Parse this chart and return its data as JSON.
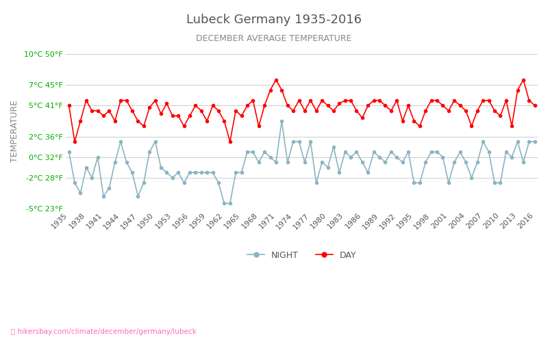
{
  "title": "Lubeck Germany 1935-2016",
  "subtitle": "DECEMBER AVERAGE TEMPERATURE",
  "ylabel": "TEMPERATURE",
  "xlabel": "",
  "url_text": "hikersbay.com/climate/december/germany/lubeck",
  "ylim": [
    -5,
    10
  ],
  "yticks_celsius": [
    -5,
    -2,
    0,
    2,
    5,
    7,
    10
  ],
  "yticks_fahrenheit": [
    23,
    28,
    32,
    36,
    41,
    45,
    50
  ],
  "years": [
    1935,
    1936,
    1937,
    1938,
    1939,
    1940,
    1941,
    1942,
    1943,
    1944,
    1945,
    1946,
    1947,
    1948,
    1949,
    1950,
    1951,
    1952,
    1953,
    1954,
    1955,
    1956,
    1957,
    1958,
    1959,
    1960,
    1961,
    1962,
    1963,
    1964,
    1965,
    1966,
    1967,
    1968,
    1969,
    1970,
    1971,
    1972,
    1973,
    1974,
    1975,
    1976,
    1977,
    1978,
    1979,
    1980,
    1981,
    1982,
    1983,
    1984,
    1985,
    1986,
    1987,
    1988,
    1989,
    1990,
    1991,
    1992,
    1993,
    1994,
    1995,
    1996,
    1997,
    1998,
    1999,
    2000,
    2001,
    2002,
    2003,
    2004,
    2005,
    2006,
    2007,
    2008,
    2009,
    2010,
    2011,
    2012,
    2013,
    2014,
    2015,
    2016
  ],
  "day_temps": [
    5.0,
    1.5,
    3.5,
    5.5,
    4.5,
    4.5,
    4.0,
    4.5,
    3.5,
    5.5,
    5.5,
    4.5,
    3.5,
    3.0,
    4.8,
    5.5,
    4.2,
    5.2,
    4.0,
    4.0,
    3.0,
    4.0,
    5.0,
    4.5,
    3.5,
    5.0,
    4.5,
    3.5,
    1.5,
    4.5,
    4.0,
    5.0,
    5.5,
    3.0,
    5.0,
    6.5,
    7.5,
    6.5,
    5.0,
    4.5,
    5.5,
    4.5,
    5.5,
    4.5,
    5.5,
    5.0,
    4.5,
    5.2,
    5.5,
    5.5,
    4.5,
    3.8,
    5.0,
    5.5,
    5.5,
    5.0,
    4.5,
    5.5,
    3.5,
    5.0,
    3.5,
    3.0,
    4.5,
    5.5,
    5.5,
    5.0,
    4.5,
    5.5,
    5.0,
    4.5,
    3.0,
    4.5,
    5.5,
    5.5,
    4.5,
    4.0,
    5.5,
    3.0,
    6.5,
    7.5,
    5.5,
    5.0
  ],
  "night_temps": [
    0.5,
    -2.5,
    -3.5,
    -1.0,
    -2.0,
    0.0,
    -3.8,
    -3.0,
    -0.5,
    1.5,
    -0.5,
    -1.5,
    -3.8,
    -2.5,
    0.5,
    1.5,
    -1.0,
    -1.5,
    -2.0,
    -1.5,
    -2.5,
    -1.5,
    -1.5,
    -1.5,
    -1.5,
    -1.5,
    -2.5,
    -4.5,
    -4.5,
    -1.5,
    -1.5,
    0.5,
    0.5,
    -0.5,
    0.5,
    0.0,
    -0.5,
    3.5,
    -0.5,
    1.5,
    1.5,
    -0.5,
    1.5,
    -2.5,
    -0.5,
    -1.0,
    1.0,
    -1.5,
    0.5,
    0.0,
    0.5,
    -0.5,
    -1.5,
    0.5,
    0.0,
    -0.5,
    0.5,
    0.0,
    -0.5,
    0.5,
    -2.5,
    -2.5,
    -0.5,
    0.5,
    0.5,
    0.0,
    -2.5,
    -0.5,
    0.5,
    -0.5,
    -2.0,
    -0.5,
    1.5,
    0.5,
    -2.5,
    -2.5,
    0.5,
    0.0,
    1.5,
    -0.5,
    1.5,
    1.5
  ],
  "day_color": "#ff0000",
  "night_color": "#8ab4c2",
  "title_color": "#555555",
  "subtitle_color": "#888888",
  "ylabel_color": "#888888",
  "ytick_left_color": "#00aa00",
  "ytick_right_color": "#0000ff",
  "xtick_color": "#555555",
  "grid_color": "#cccccc",
  "background_color": "#ffffff",
  "legend_night_color": "#8ab4c2",
  "legend_day_color": "#ff0000",
  "url_color": "#ff69b4"
}
